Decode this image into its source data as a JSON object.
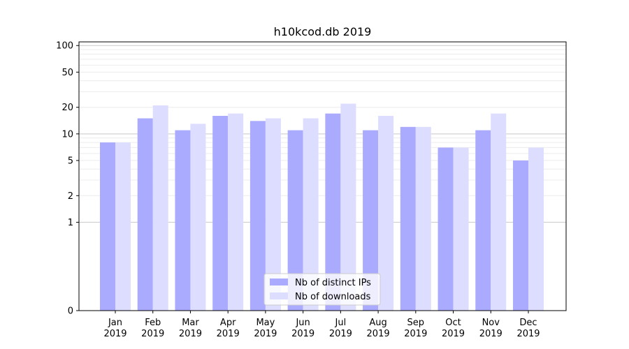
{
  "chart_data": {
    "type": "bar",
    "title": "h10kcod.db 2019",
    "xlabel": "",
    "ylabel": "",
    "y_scale": "symlog",
    "ylim": [
      0,
      110
    ],
    "yticks": [
      0,
      1,
      2,
      5,
      10,
      20,
      50,
      100
    ],
    "grid": true,
    "legend_position": "lower-center",
    "categories": [
      [
        "Jan",
        "2019"
      ],
      [
        "Feb",
        "2019"
      ],
      [
        "Mar",
        "2019"
      ],
      [
        "Apr",
        "2019"
      ],
      [
        "May",
        "2019"
      ],
      [
        "Jun",
        "2019"
      ],
      [
        "Jul",
        "2019"
      ],
      [
        "Aug",
        "2019"
      ],
      [
        "Sep",
        "2019"
      ],
      [
        "Oct",
        "2019"
      ],
      [
        "Nov",
        "2019"
      ],
      [
        "Dec",
        "2019"
      ]
    ],
    "series": [
      {
        "name": "Nb of distinct IPs",
        "color": "#aaaaff",
        "values": [
          8,
          15,
          11,
          16,
          14,
          11,
          17,
          11,
          12,
          7,
          11,
          5
        ]
      },
      {
        "name": "Nb of downloads",
        "color": "#ddddff",
        "values": [
          8,
          21,
          13,
          17,
          15,
          15,
          22,
          16,
          12,
          7,
          17,
          7
        ]
      }
    ]
  }
}
